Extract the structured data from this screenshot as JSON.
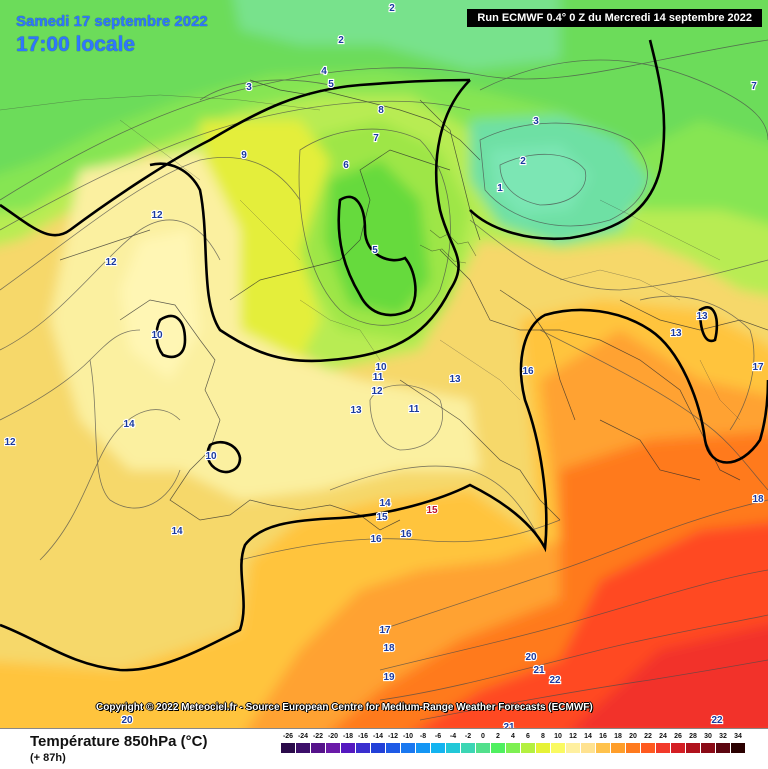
{
  "header": {
    "date": "Samedi 17 septembre 2022",
    "local_time": "17:00 locale",
    "run": "Run ECMWF 0.4° 0 Z du Mercredi 14 septembre 2022"
  },
  "copyright": "Copyright © 2022 Meteociel.fr - Source European Centre for Medium-Range Weather Forecasts (ECMWF)",
  "footer": {
    "parameter": "Température 850hPa (°C)",
    "lead_time": "(+ 87h)"
  },
  "legend": {
    "values": [
      "-26",
      "-24",
      "-22",
      "-20",
      "-18",
      "-16",
      "-14",
      "-12",
      "-10",
      "-8",
      "-6",
      "-4",
      "-2",
      "0",
      "2",
      "4",
      "6",
      "8",
      "10",
      "12",
      "14",
      "16",
      "18",
      "20",
      "22",
      "24",
      "26",
      "28",
      "30",
      "32",
      "34"
    ],
    "colors": [
      "#2a0a4a",
      "#3c0f6a",
      "#55128a",
      "#6a1aa8",
      "#5418c0",
      "#3a2fcf",
      "#2240d8",
      "#1e5ae6",
      "#1a78f0",
      "#1496f4",
      "#14b4f0",
      "#22c8d8",
      "#3cd6b4",
      "#52e08c",
      "#4ff060",
      "#7ef052",
      "#b4f040",
      "#e6f236",
      "#fafa62",
      "#fff0a0",
      "#ffe290",
      "#ffc24c",
      "#ff9e2a",
      "#ff7a1e",
      "#ff5a20",
      "#f23a2a",
      "#d41e24",
      "#b0121c",
      "#8a0a16",
      "#5c0610",
      "#2a0000"
    ]
  },
  "map_labels": [
    {
      "text": "2",
      "kind": "blue"
    },
    {
      "text": "2",
      "kind": "blue"
    },
    {
      "text": "3",
      "kind": "blue"
    },
    {
      "text": "4",
      "kind": "blue"
    },
    {
      "text": "5",
      "kind": "blue"
    },
    {
      "text": "8",
      "kind": "blue"
    },
    {
      "text": "7",
      "kind": "blue"
    },
    {
      "text": "9",
      "kind": "blue"
    },
    {
      "text": "6",
      "kind": "blue"
    },
    {
      "text": "5",
      "kind": "blue"
    },
    {
      "text": "3",
      "kind": "blue"
    },
    {
      "text": "2",
      "kind": "blue"
    },
    {
      "text": "1",
      "kind": "blue"
    },
    {
      "text": "7",
      "kind": "blue"
    },
    {
      "text": "12",
      "kind": "blue"
    },
    {
      "text": "12",
      "kind": "blue"
    },
    {
      "text": "10",
      "kind": "blue"
    },
    {
      "text": "14",
      "kind": "blue"
    },
    {
      "text": "12",
      "kind": "blue"
    },
    {
      "text": "10",
      "kind": "blue"
    },
    {
      "text": "10",
      "kind": "blue"
    },
    {
      "text": "11",
      "kind": "blue"
    },
    {
      "text": "12",
      "kind": "blue"
    },
    {
      "text": "13",
      "kind": "blue"
    },
    {
      "text": "11",
      "kind": "blue"
    },
    {
      "text": "13",
      "kind": "blue"
    },
    {
      "text": "16",
      "kind": "blue"
    },
    {
      "text": "13",
      "kind": "blue"
    },
    {
      "text": "13",
      "kind": "blue"
    },
    {
      "text": "17",
      "kind": "blue"
    },
    {
      "text": "14",
      "kind": "blue"
    },
    {
      "text": "15",
      "kind": "blue"
    },
    {
      "text": "15",
      "kind": "red"
    },
    {
      "text": "16",
      "kind": "blue"
    },
    {
      "text": "16",
      "kind": "blue"
    },
    {
      "text": "14",
      "kind": "blue"
    },
    {
      "text": "18",
      "kind": "blue"
    },
    {
      "text": "17",
      "kind": "blue"
    },
    {
      "text": "18",
      "kind": "blue"
    },
    {
      "text": "19",
      "kind": "blue"
    },
    {
      "text": "20",
      "kind": "blue"
    },
    {
      "text": "21",
      "kind": "blue"
    },
    {
      "text": "22",
      "kind": "blue"
    },
    {
      "text": "20",
      "kind": "blue"
    },
    {
      "text": "21",
      "kind": "blue"
    },
    {
      "text": "22",
      "kind": "blue"
    }
  ]
}
